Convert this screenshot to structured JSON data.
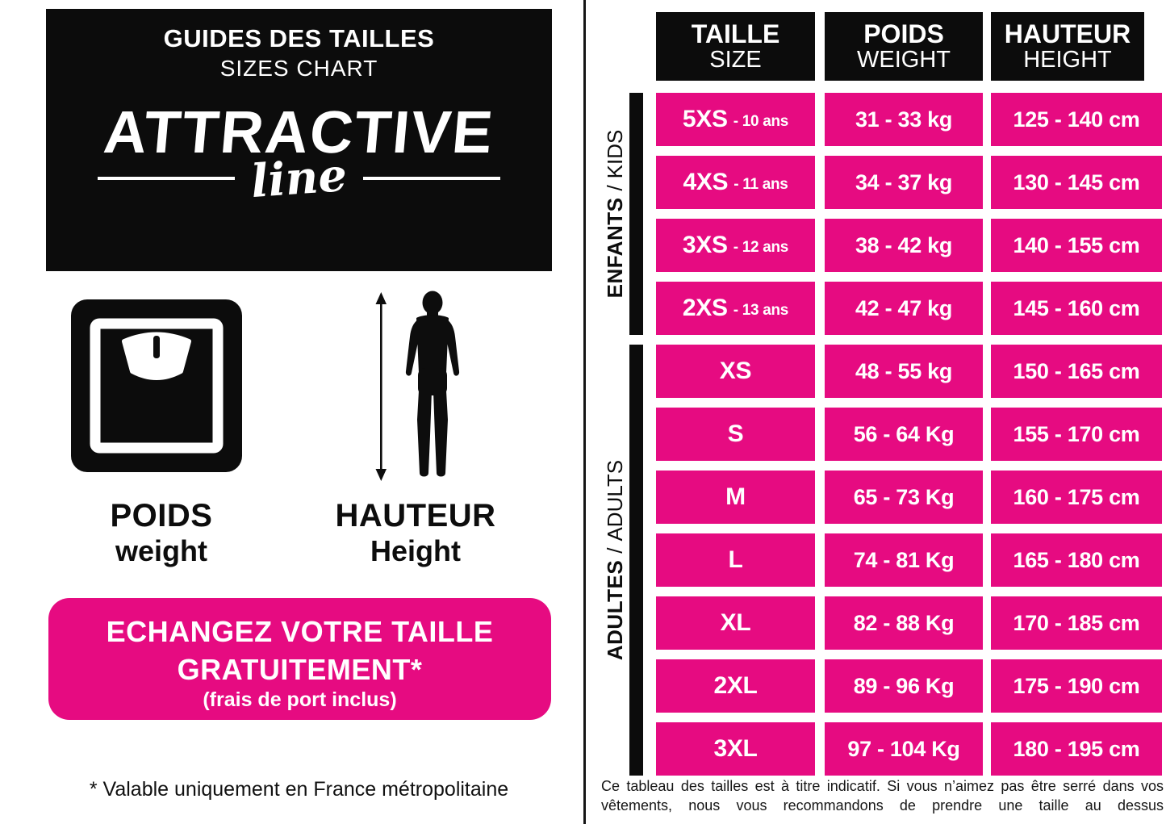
{
  "brand": {
    "title_fr": "GUIDES DES TAILLES",
    "title_en": "SIZES CHART",
    "logo_main": "ATTRACTIVE",
    "logo_script": "line"
  },
  "legend": {
    "weight_icon": "bathroom-scale-icon",
    "height_icon": "person-height-arrow-icon",
    "weight_fr": "POIDS",
    "weight_en": "weight",
    "height_fr": "HAUTEUR",
    "height_en": "Height"
  },
  "cta": {
    "line1": "ECHANGEZ VOTRE TAILLE",
    "line2": "GRATUITEMENT*",
    "line3": "(frais de port inclus)"
  },
  "left_footnote": "* Valable uniquement en France métropolitaine",
  "table": {
    "headers": [
      {
        "fr": "TAILLE",
        "en": "SIZE"
      },
      {
        "fr": "POIDS",
        "en": "WEIGHT"
      },
      {
        "fr": "HAUTEUR",
        "en": "HEIGHT"
      }
    ],
    "groups": [
      {
        "label_fr": "ENFANTS",
        "label_sep": "/",
        "label_en": "KIDS",
        "rows": [
          {
            "size": "5XS",
            "age": "- 10 ans",
            "weight": "31 - 33 kg",
            "height": "125 - 140 cm"
          },
          {
            "size": "4XS",
            "age": "- 11 ans",
            "weight": "34 - 37 kg",
            "height": "130 - 145 cm"
          },
          {
            "size": "3XS",
            "age": "- 12 ans",
            "weight": "38 - 42 kg",
            "height": "140 - 155 cm"
          },
          {
            "size": "2XS",
            "age": "- 13 ans",
            "weight": "42 - 47 kg",
            "height": "145 - 160 cm"
          }
        ]
      },
      {
        "label_fr": "ADULTES",
        "label_sep": "/",
        "label_en": "ADULTS",
        "rows": [
          {
            "size": "XS",
            "age": "",
            "weight": "48 - 55 kg",
            "height": "150 - 165 cm"
          },
          {
            "size": "S",
            "age": "",
            "weight": "56 - 64 Kg",
            "height": "155 - 170 cm"
          },
          {
            "size": "M",
            "age": "",
            "weight": "65 - 73 Kg",
            "height": "160 - 175 cm"
          },
          {
            "size": "L",
            "age": "",
            "weight": "74 - 81 Kg",
            "height": "165 - 180 cm"
          },
          {
            "size": "XL",
            "age": "",
            "weight": "82 - 88 Kg",
            "height": "170 - 185 cm"
          },
          {
            "size": "2XL",
            "age": "",
            "weight": "89 - 96 Kg",
            "height": "175 - 190 cm"
          },
          {
            "size": "3XL",
            "age": "",
            "weight": "97 - 104 Kg",
            "height": "180 - 195 cm"
          }
        ]
      }
    ],
    "footnote": "Ce tableau des tailles est à titre indicatif. Si vous n’aimez pas être serré dans vos vêtements, nous vous recommandons de prendre une taille au dessus"
  },
  "colors": {
    "pink": "#e60b81",
    "black": "#0c0c0c"
  }
}
